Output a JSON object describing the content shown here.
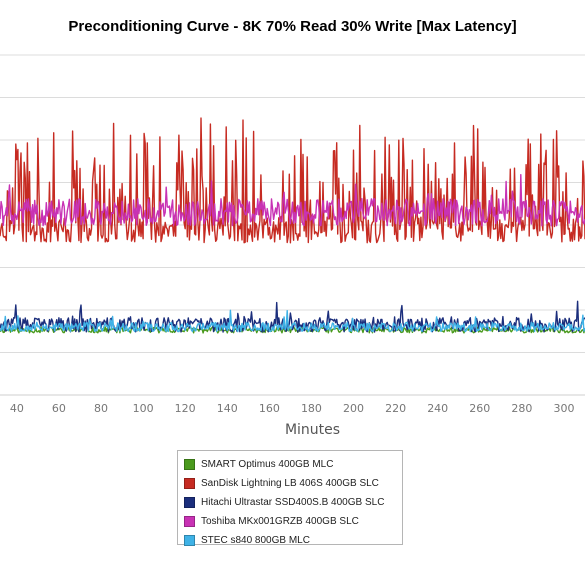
{
  "chart_data": {
    "type": "line",
    "title": "Preconditioning Curve - 8K 70% Read 30% Write [Max Latency]",
    "xlabel": "Minutes",
    "ylabel": "",
    "xlim": [
      32,
      310
    ],
    "ylim": [
      0,
      8
    ],
    "x_ticks": [
      40,
      60,
      80,
      100,
      120,
      140,
      160,
      180,
      200,
      220,
      240,
      260,
      280,
      300
    ],
    "y_gridlines": [
      1,
      2,
      3,
      4,
      5,
      6,
      7,
      8
    ],
    "grid": "horizontal",
    "legend_position": "bottom-center",
    "series": [
      {
        "name": "SMART Optimus 400GB MLC",
        "color": "#4a9a1d",
        "base": 1.53,
        "noise": 0.07,
        "spike_prob": 0.0,
        "spike_height": 0,
        "seed": 11
      },
      {
        "name": "SanDisk Lightning LB 406S 400GB SLC",
        "color": "#c62b22",
        "base": 3.9,
        "noise": 0.32,
        "spike_prob": 0.28,
        "spike_height": 1.9,
        "seed": 23
      },
      {
        "name": "Hitachi Ultrastar SSD400S.B 400GB SLC",
        "color": "#1b2e7c",
        "base": 1.65,
        "noise": 0.17,
        "spike_prob": 0.05,
        "spike_height": 0.35,
        "seed": 37
      },
      {
        "name": "Toshiba MKx001GRZB 400GB SLC",
        "color": "#c832b4",
        "base": 4.3,
        "noise": 0.32,
        "spike_prob": 0.05,
        "spike_height": 0.5,
        "seed": 41
      },
      {
        "name": "STEC s840 800GB MLC",
        "color": "#3fb2e6",
        "base": 1.6,
        "noise": 0.11,
        "spike_prob": 0.04,
        "spike_height": 0.25,
        "seed": 53
      }
    ]
  }
}
